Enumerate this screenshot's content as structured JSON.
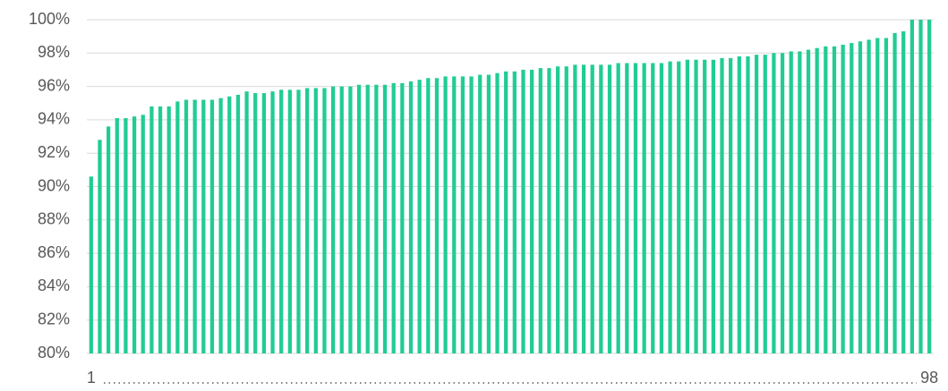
{
  "chart_data": {
    "type": "bar",
    "categories": [
      "1",
      null,
      null,
      null,
      null,
      null,
      null,
      null,
      null,
      null,
      null,
      null,
      null,
      null,
      null,
      null,
      null,
      null,
      null,
      null,
      null,
      null,
      null,
      null,
      null,
      null,
      null,
      null,
      null,
      null,
      null,
      null,
      null,
      null,
      null,
      null,
      null,
      null,
      null,
      null,
      null,
      null,
      null,
      null,
      null,
      null,
      null,
      null,
      null,
      null,
      null,
      null,
      null,
      null,
      null,
      null,
      null,
      null,
      null,
      null,
      null,
      null,
      null,
      null,
      null,
      null,
      null,
      null,
      null,
      null,
      null,
      null,
      null,
      null,
      null,
      null,
      null,
      null,
      null,
      null,
      null,
      null,
      null,
      null,
      null,
      null,
      null,
      null,
      null,
      null,
      null,
      null,
      null,
      null,
      null,
      null,
      null,
      "98"
    ],
    "values": [
      90.6,
      92.8,
      93.6,
      94.1,
      94.1,
      94.2,
      94.3,
      94.8,
      94.8,
      94.8,
      95.1,
      95.2,
      95.2,
      95.2,
      95.2,
      95.3,
      95.4,
      95.5,
      95.7,
      95.6,
      95.6,
      95.7,
      95.8,
      95.8,
      95.8,
      95.9,
      95.9,
      95.9,
      96.0,
      96.0,
      96.0,
      96.1,
      96.1,
      96.1,
      96.1,
      96.2,
      96.2,
      96.3,
      96.4,
      96.5,
      96.5,
      96.6,
      96.6,
      96.6,
      96.6,
      96.7,
      96.7,
      96.8,
      96.9,
      96.9,
      97.0,
      97.0,
      97.1,
      97.1,
      97.2,
      97.2,
      97.3,
      97.3,
      97.3,
      97.3,
      97.3,
      97.4,
      97.4,
      97.4,
      97.4,
      97.4,
      97.4,
      97.5,
      97.5,
      97.6,
      97.6,
      97.6,
      97.6,
      97.7,
      97.7,
      97.8,
      97.8,
      97.9,
      97.9,
      98.0,
      98.0,
      98.1,
      98.1,
      98.2,
      98.3,
      98.4,
      98.4,
      98.5,
      98.6,
      98.7,
      98.8,
      98.9,
      98.9,
      99.2,
      99.3,
      100,
      100,
      100
    ],
    "color": "#21cc94",
    "ylim": [
      80,
      100
    ],
    "yticks": [
      {
        "value": 80,
        "label": "80%"
      },
      {
        "value": 82,
        "label": "82%"
      },
      {
        "value": 84,
        "label": "84%"
      },
      {
        "value": 86,
        "label": "86%"
      },
      {
        "value": 88,
        "label": "88%"
      },
      {
        "value": 90,
        "label": "90%"
      },
      {
        "value": 92,
        "label": "92%"
      },
      {
        "value": 94,
        "label": "94%"
      },
      {
        "value": 96,
        "label": "96%"
      },
      {
        "value": 98,
        "label": "98%"
      },
      {
        "value": 100,
        "label": "100%"
      }
    ],
    "grid": true
  }
}
